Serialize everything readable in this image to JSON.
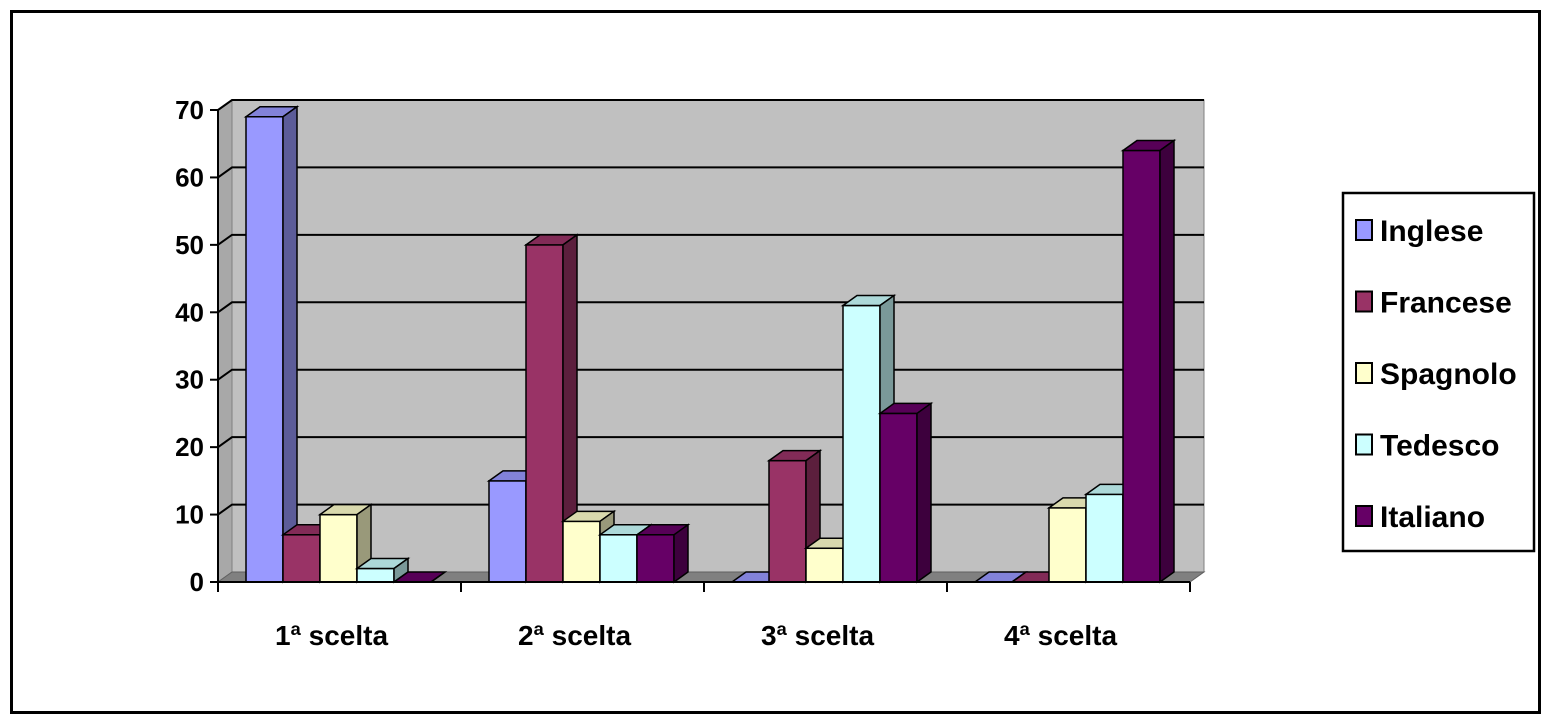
{
  "chart_data": {
    "type": "bar",
    "three_d": true,
    "categories": [
      "1ª scelta",
      "2ª scelta",
      "3ª scelta",
      "4ª scelta"
    ],
    "series": [
      {
        "name": "Inglese",
        "color": "#9999ff",
        "values": [
          69,
          15,
          0,
          0
        ]
      },
      {
        "name": "Francese",
        "color": "#993366",
        "values": [
          7,
          50,
          18,
          0
        ]
      },
      {
        "name": "Spagnolo",
        "color": "#ffffcc",
        "values": [
          10,
          9,
          5,
          11
        ]
      },
      {
        "name": "Tedesco",
        "color": "#ccffff",
        "values": [
          2,
          7,
          41,
          13
        ]
      },
      {
        "name": "Italiano",
        "color": "#660066",
        "values": [
          0,
          7,
          25,
          64
        ]
      }
    ],
    "ylim": [
      0,
      70
    ],
    "yticks": [
      0,
      10,
      20,
      30,
      40,
      50,
      60,
      70
    ],
    "grid": true,
    "wall_color": "#c0c0c0",
    "legend_position": "right"
  }
}
